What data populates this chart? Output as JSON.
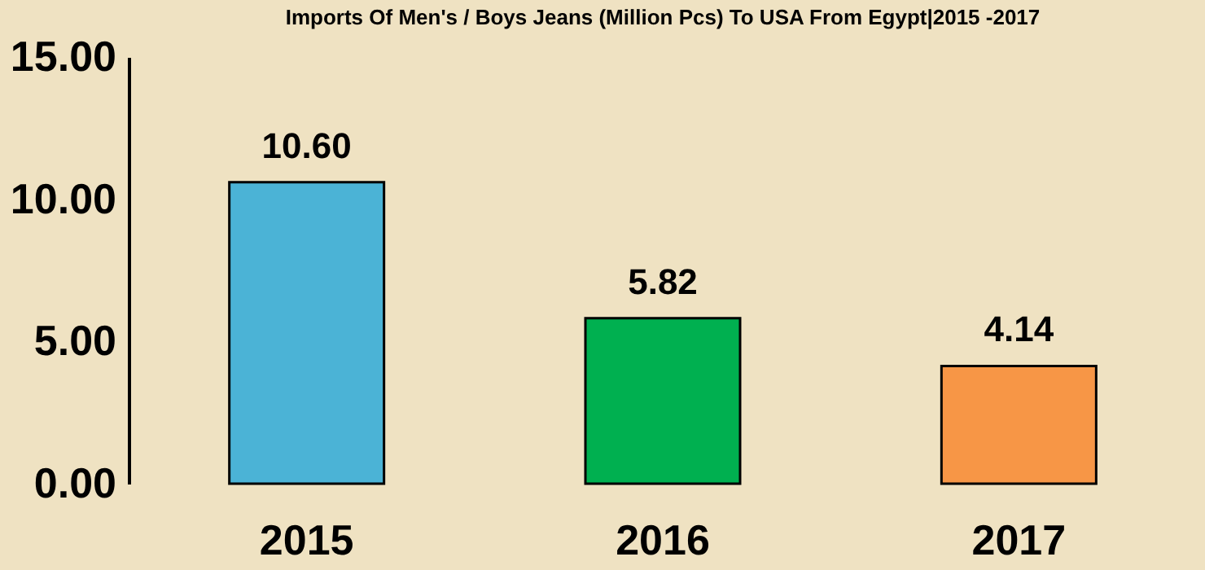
{
  "chart_data": {
    "type": "bar",
    "title": "Imports Of Men's / Boys Jeans (Million Pcs) To USA From Egypt|2015 -2017",
    "categories": [
      "2015",
      "2016",
      "2017"
    ],
    "values": [
      10.6,
      5.82,
      4.14
    ],
    "colors": [
      "#4bb3d6",
      "#00b050",
      "#f79646"
    ],
    "value_labels": [
      "10.60",
      "5.82",
      "4.14"
    ],
    "ylim": [
      0,
      15
    ],
    "yticks": [
      {
        "value": 0,
        "label": "0.00"
      },
      {
        "value": 5,
        "label": "5.00"
      },
      {
        "value": 10,
        "label": "10.00"
      },
      {
        "value": 15,
        "label": "15.00"
      }
    ],
    "grid": false
  }
}
